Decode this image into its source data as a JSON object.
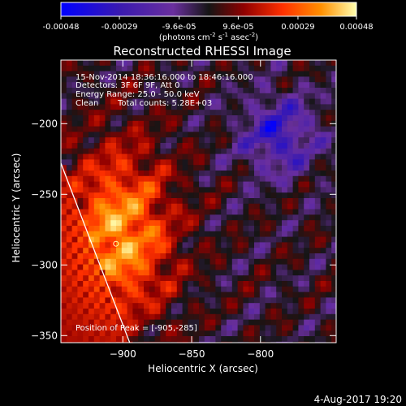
{
  "chart_data": {
    "type": "heatmap",
    "title": "Reconstructed RHESSI Image",
    "xlabel": "Heliocentric X (arcsec)",
    "ylabel": "Heliocentric Y (arcsec)",
    "xlim": [
      -945,
      -745
    ],
    "ylim": [
      -355,
      -155
    ],
    "x_ticks": [
      -900,
      -850,
      -800
    ],
    "y_ticks": [
      -350,
      -300,
      -250,
      -200
    ],
    "limb_line": {
      "x": [
        -945,
        -895
      ],
      "y": [
        -228,
        -355
      ]
    },
    "peak": {
      "x": -905,
      "y": -285
    },
    "colorbar": {
      "range": [
        -0.00048,
        0.00048
      ],
      "tick_labels": [
        "-0.00048",
        "-0.00029",
        "-9.6e-05",
        "9.6e-05",
        "0.00029",
        "0.00048"
      ],
      "tick_values": [
        -0.00048,
        -0.00029,
        -9.6e-05,
        9.6e-05,
        0.00029,
        0.00048
      ],
      "label_units": "(photons cm",
      "label_exp1": "-2",
      "label_mid": " s",
      "label_exp2": "-1",
      "label_mid2": " asec",
      "label_exp3": "-2",
      "label_end": ")",
      "colormap": [
        "#0000ff",
        "#3a1ab0",
        "#6a2f9e",
        "#151515",
        "#900000",
        "#ff3000",
        "#ff9000",
        "#ffffb0"
      ]
    }
  },
  "overlay": {
    "line1": "15-Nov-2014 18:36:16.000 to 18:46:16.000",
    "line2": "Detectors: 3F 6F 9F, Att 0",
    "line3": "Energy Range: 25.0 - 50.0 keV",
    "line4_a": "Clean",
    "line4_b": "Total counts: 5.28E+03",
    "peak_label": "Position of Peak = [-905,-285]"
  },
  "footer": {
    "date_stamp": "4-Aug-2017 19:20"
  }
}
